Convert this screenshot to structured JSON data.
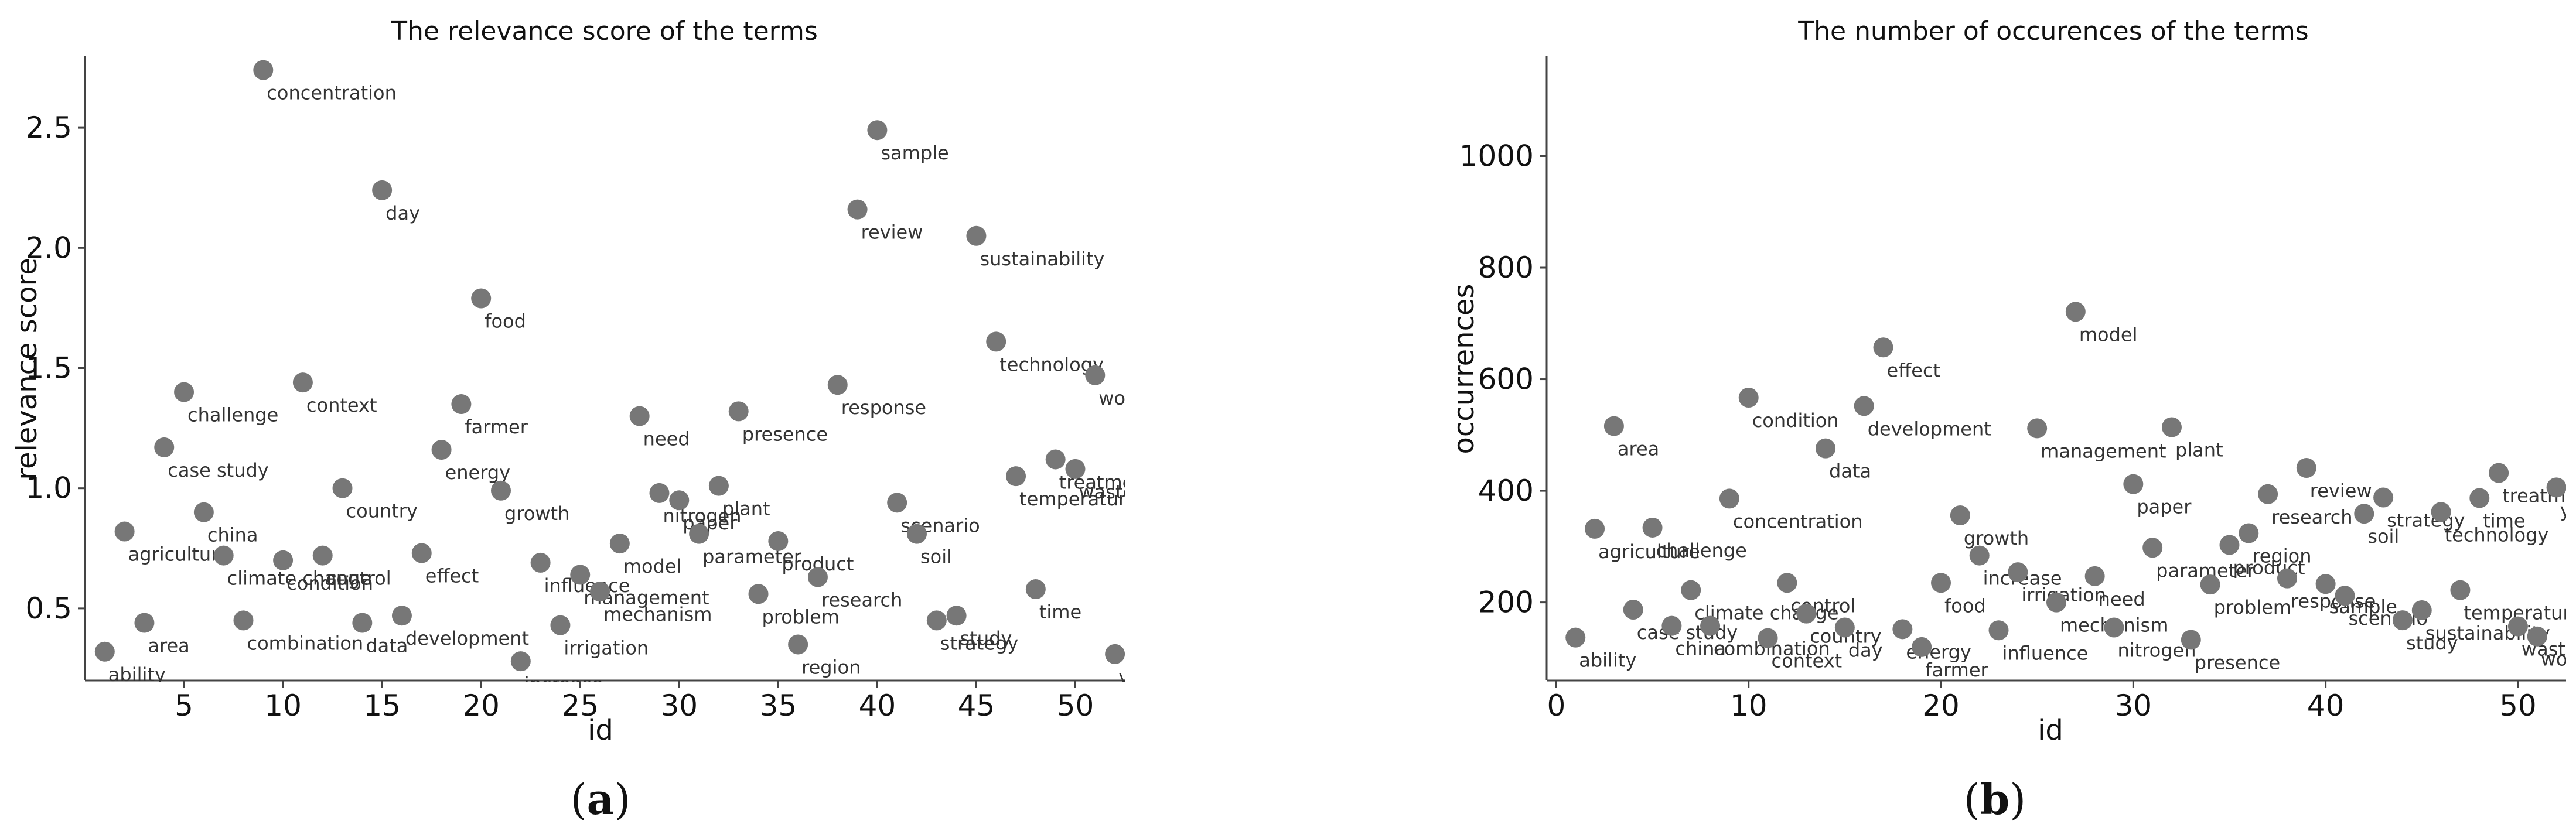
{
  "chart_data": [
    {
      "type": "scatter",
      "title": "The relevance score of the terms",
      "xlabel": "id",
      "ylabel": "relevance score",
      "caption": {
        "open": "(",
        "letter": "a",
        "close": ")"
      },
      "xlim": [
        0,
        52.5
      ],
      "ylim": [
        0.2,
        2.8
      ],
      "xticks": [
        5,
        10,
        15,
        20,
        25,
        30,
        35,
        40,
        45,
        50
      ],
      "yticks": [
        0.5,
        1.0,
        1.5,
        2.0,
        2.5
      ],
      "ytick_labels": [
        "0.5",
        "1.0",
        "1.5",
        "2.0",
        "2.5"
      ],
      "color": "#777777",
      "points": [
        {
          "x": 1,
          "y": 0.32,
          "label": "ability"
        },
        {
          "x": 2,
          "y": 0.82,
          "label": "agriculture"
        },
        {
          "x": 3,
          "y": 0.44,
          "label": "area"
        },
        {
          "x": 4,
          "y": 1.17,
          "label": "case study"
        },
        {
          "x": 5,
          "y": 1.4,
          "label": "challenge"
        },
        {
          "x": 6,
          "y": 0.9,
          "label": "china"
        },
        {
          "x": 7,
          "y": 0.72,
          "label": "climate change"
        },
        {
          "x": 8,
          "y": 0.45,
          "label": "combination"
        },
        {
          "x": 9,
          "y": 2.74,
          "label": "concentration"
        },
        {
          "x": 10,
          "y": 0.7,
          "label": "condition"
        },
        {
          "x": 11,
          "y": 1.44,
          "label": "context"
        },
        {
          "x": 12,
          "y": 0.72,
          "label": "control"
        },
        {
          "x": 13,
          "y": 1.0,
          "label": "country"
        },
        {
          "x": 14,
          "y": 0.44,
          "label": "data"
        },
        {
          "x": 15,
          "y": 2.24,
          "label": "day"
        },
        {
          "x": 16,
          "y": 0.47,
          "label": "development"
        },
        {
          "x": 17,
          "y": 0.73,
          "label": "effect"
        },
        {
          "x": 18,
          "y": 1.16,
          "label": "energy"
        },
        {
          "x": 19,
          "y": 1.35,
          "label": "farmer"
        },
        {
          "x": 20,
          "y": 1.79,
          "label": "food"
        },
        {
          "x": 21,
          "y": 0.99,
          "label": "growth"
        },
        {
          "x": 22,
          "y": 0.28,
          "label": "increase"
        },
        {
          "x": 23,
          "y": 0.69,
          "label": "influence"
        },
        {
          "x": 24,
          "y": 0.43,
          "label": "irrigation"
        },
        {
          "x": 25,
          "y": 0.64,
          "label": "management"
        },
        {
          "x": 26,
          "y": 0.57,
          "label": "mechanism"
        },
        {
          "x": 27,
          "y": 0.77,
          "label": "model"
        },
        {
          "x": 28,
          "y": 1.3,
          "label": "need"
        },
        {
          "x": 29,
          "y": 0.98,
          "label": "nitrogen"
        },
        {
          "x": 30,
          "y": 0.95,
          "label": "paper"
        },
        {
          "x": 31,
          "y": 0.81,
          "label": "parameter"
        },
        {
          "x": 32,
          "y": 1.01,
          "label": "plant"
        },
        {
          "x": 33,
          "y": 1.32,
          "label": "presence"
        },
        {
          "x": 34,
          "y": 0.56,
          "label": "problem"
        },
        {
          "x": 35,
          "y": 0.78,
          "label": "product"
        },
        {
          "x": 36,
          "y": 0.35,
          "label": "region"
        },
        {
          "x": 37,
          "y": 0.63,
          "label": "research"
        },
        {
          "x": 38,
          "y": 1.43,
          "label": "response"
        },
        {
          "x": 39,
          "y": 2.16,
          "label": "review"
        },
        {
          "x": 40,
          "y": 2.49,
          "label": "sample"
        },
        {
          "x": 41,
          "y": 0.94,
          "label": "scenario"
        },
        {
          "x": 42,
          "y": 0.81,
          "label": "soil"
        },
        {
          "x": 43,
          "y": 0.45,
          "label": "strategy"
        },
        {
          "x": 44,
          "y": 0.47,
          "label": "study"
        },
        {
          "x": 45,
          "y": 2.05,
          "label": "sustainability"
        },
        {
          "x": 46,
          "y": 1.61,
          "label": "technology"
        },
        {
          "x": 47,
          "y": 1.05,
          "label": "temperature"
        },
        {
          "x": 48,
          "y": 0.58,
          "label": "time"
        },
        {
          "x": 49,
          "y": 1.12,
          "label": "treatment"
        },
        {
          "x": 50,
          "y": 1.08,
          "label": "waste"
        },
        {
          "x": 51,
          "y": 1.47,
          "label": "world"
        },
        {
          "x": 52,
          "y": 0.31,
          "label": "yield"
        }
      ]
    },
    {
      "type": "scatter",
      "title": "The number of occurences of the terms",
      "xlabel": "id",
      "ylabel": "occurrences",
      "caption": {
        "open": "(",
        "letter": "b",
        "close": ")"
      },
      "xlim": [
        -0.5,
        52.5
      ],
      "ylim": [
        60,
        1180
      ],
      "xticks": [
        0,
        10,
        20,
        30,
        40,
        50
      ],
      "yticks": [
        200,
        400,
        600,
        800,
        1000
      ],
      "ytick_labels": [
        "200",
        "400",
        "600",
        "800",
        "1000"
      ],
      "color": "#777777",
      "points": [
        {
          "x": 1,
          "y": 137,
          "label": "ability"
        },
        {
          "x": 2,
          "y": 332,
          "label": "agriculture"
        },
        {
          "x": 3,
          "y": 516,
          "label": "area"
        },
        {
          "x": 4,
          "y": 187,
          "label": "case study"
        },
        {
          "x": 5,
          "y": 334,
          "label": "challenge"
        },
        {
          "x": 6,
          "y": 158,
          "label": "china"
        },
        {
          "x": 7,
          "y": 222,
          "label": "climate change"
        },
        {
          "x": 8,
          "y": 158,
          "label": "combination"
        },
        {
          "x": 9,
          "y": 386,
          "label": "concentration"
        },
        {
          "x": 10,
          "y": 567,
          "label": "condition"
        },
        {
          "x": 11,
          "y": 136,
          "label": "context"
        },
        {
          "x": 12,
          "y": 235,
          "label": "control"
        },
        {
          "x": 13,
          "y": 180,
          "label": "country"
        },
        {
          "x": 14,
          "y": 476,
          "label": "data"
        },
        {
          "x": 15,
          "y": 155,
          "label": "day"
        },
        {
          "x": 16,
          "y": 552,
          "label": "development"
        },
        {
          "x": 17,
          "y": 657,
          "label": "effect"
        },
        {
          "x": 18,
          "y": 152,
          "label": "energy"
        },
        {
          "x": 19,
          "y": 120,
          "label": "farmer"
        },
        {
          "x": 20,
          "y": 235,
          "label": "food"
        },
        {
          "x": 21,
          "y": 356,
          "label": "growth"
        },
        {
          "x": 22,
          "y": 284,
          "label": "increase"
        },
        {
          "x": 23,
          "y": 150,
          "label": "influence"
        },
        {
          "x": 24,
          "y": 254,
          "label": "irrigation"
        },
        {
          "x": 25,
          "y": 512,
          "label": "management"
        },
        {
          "x": 26,
          "y": 200,
          "label": "mechanism"
        },
        {
          "x": 27,
          "y": 721,
          "label": "model"
        },
        {
          "x": 28,
          "y": 247,
          "label": "need"
        },
        {
          "x": 29,
          "y": 155,
          "label": "nitrogen"
        },
        {
          "x": 30,
          "y": 412,
          "label": "paper"
        },
        {
          "x": 31,
          "y": 298,
          "label": "parameter"
        },
        {
          "x": 32,
          "y": 514,
          "label": "plant"
        },
        {
          "x": 33,
          "y": 133,
          "label": "presence"
        },
        {
          "x": 34,
          "y": 232,
          "label": "problem"
        },
        {
          "x": 35,
          "y": 303,
          "label": "product"
        },
        {
          "x": 36,
          "y": 324,
          "label": "region"
        },
        {
          "x": 37,
          "y": 394,
          "label": "research"
        },
        {
          "x": 38,
          "y": 243,
          "label": "response"
        },
        {
          "x": 39,
          "y": 441,
          "label": "review"
        },
        {
          "x": 40,
          "y": 233,
          "label": "sample"
        },
        {
          "x": 41,
          "y": 212,
          "label": "scenario"
        },
        {
          "x": 42,
          "y": 359,
          "label": "soil"
        },
        {
          "x": 43,
          "y": 388,
          "label": "strategy"
        },
        {
          "x": 44,
          "y": 168,
          "label": "study"
        },
        {
          "x": 45,
          "y": 186,
          "label": "sustainability"
        },
        {
          "x": 46,
          "y": 362,
          "label": "technology"
        },
        {
          "x": 47,
          "y": 222,
          "label": "temperature"
        },
        {
          "x": 48,
          "y": 387,
          "label": "time"
        },
        {
          "x": 49,
          "y": 432,
          "label": "treatment"
        },
        {
          "x": 50,
          "y": 157,
          "label": "waste"
        },
        {
          "x": 51,
          "y": 139,
          "label": "world"
        },
        {
          "x": 52,
          "y": 406,
          "label": "yield"
        }
      ]
    }
  ]
}
